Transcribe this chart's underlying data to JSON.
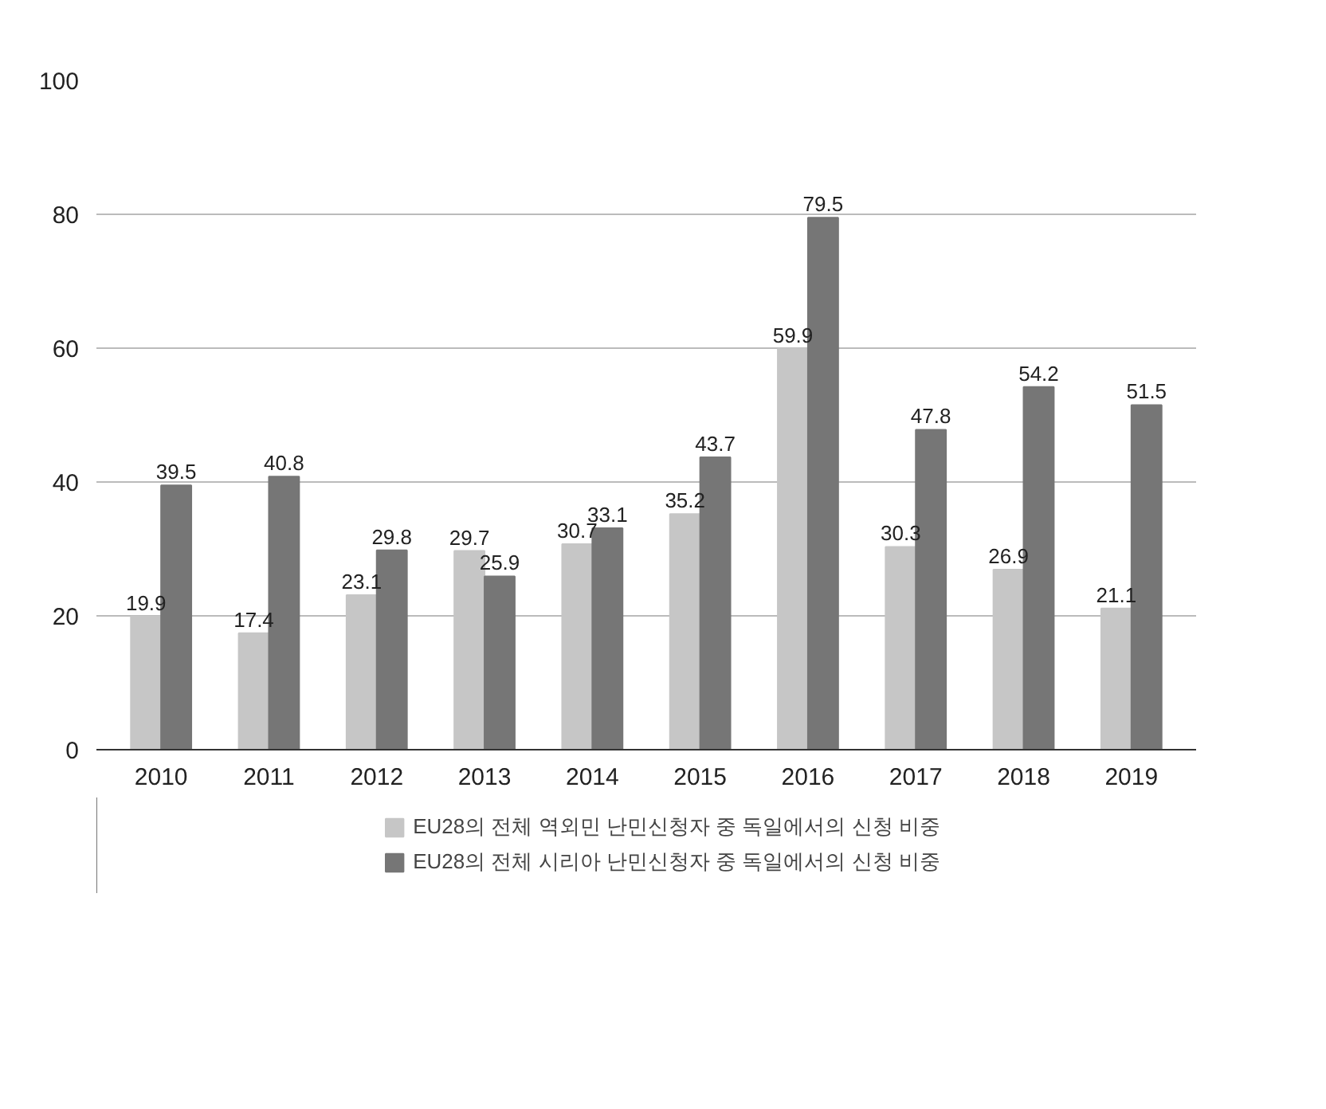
{
  "chart_data": {
    "type": "bar",
    "categories": [
      "2010",
      "2011",
      "2012",
      "2013",
      "2014",
      "2015",
      "2016",
      "2017",
      "2018",
      "2019"
    ],
    "series": [
      {
        "name": "EU28의 전체 역외민 난민신청자 중 독일에서의 신청 비중",
        "color": "#c6c6c6",
        "values": [
          19.9,
          17.4,
          23.1,
          29.7,
          30.7,
          35.2,
          59.9,
          30.3,
          26.9,
          21.1
        ]
      },
      {
        "name": "EU28의 전체 시리아 난민신청자 중 독일에서의 신청 비중",
        "color": "#767676",
        "values": [
          39.5,
          40.8,
          29.8,
          25.9,
          33.1,
          43.7,
          79.5,
          47.8,
          54.2,
          51.5
        ]
      }
    ],
    "ylim": [
      0,
      100
    ],
    "yticks": [
      0,
      20,
      40,
      60,
      80,
      100
    ],
    "grid": "y",
    "legend": "bottom",
    "data_labels": true
  }
}
